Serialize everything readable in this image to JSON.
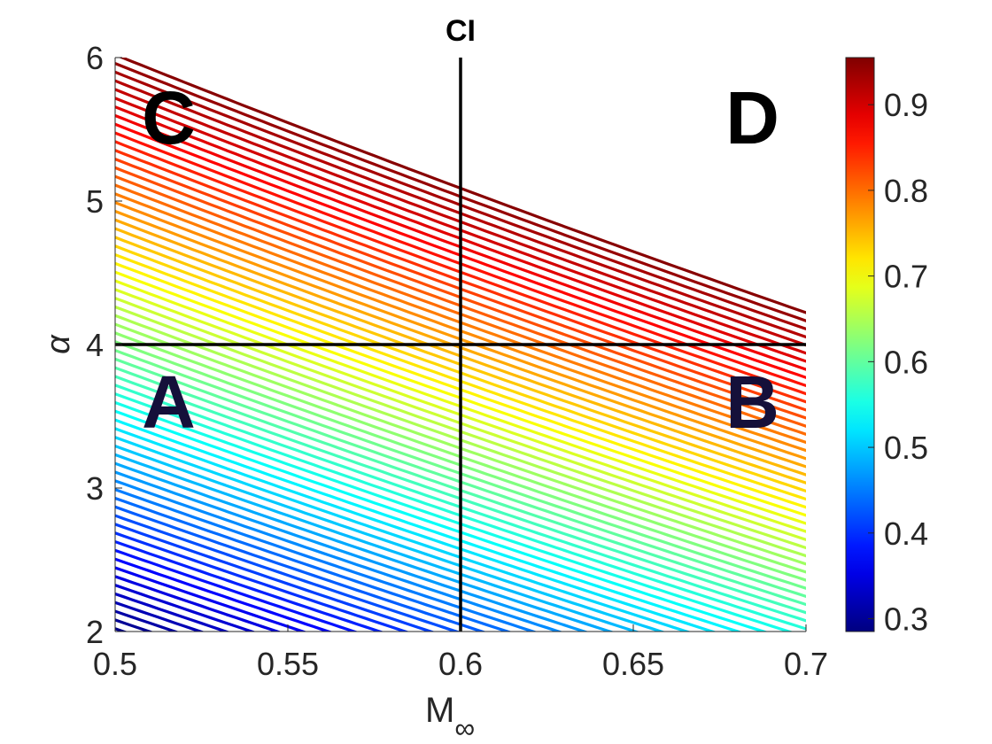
{
  "chart_data": {
    "type": "contour",
    "title": "CI",
    "xlabel": "M",
    "xlabel_subscript": "∞",
    "ylabel": "α",
    "xlim": [
      0.5,
      0.7
    ],
    "ylim": [
      2,
      6
    ],
    "xticks": [
      "0.5",
      "0.55",
      "0.6",
      "0.65",
      "0.7"
    ],
    "yticks": [
      "2",
      "3",
      "4",
      "5",
      "6"
    ],
    "colorbar": {
      "colormap": "jet",
      "range": [
        0.285,
        0.955
      ],
      "ticks": [
        "0.3",
        "0.4",
        "0.5",
        "0.6",
        "0.7",
        "0.8",
        "0.9"
      ]
    },
    "contour_levels": {
      "start": 0.29,
      "end": 0.95,
      "step": 0.01
    },
    "field_model": "CI ≈ 0.29 + 0.165·(α − 2.02) + 1.35·(M∞ − 0.5) + 0.06·(α − 2)·(M∞ − 0.5)",
    "divider_lines": [
      {
        "orientation": "vertical",
        "x": 0.6
      },
      {
        "orientation": "horizontal",
        "y": 4
      }
    ],
    "quadrant_labels": [
      {
        "label": "A",
        "region": "low M, low α"
      },
      {
        "label": "B",
        "region": "high M, low α"
      },
      {
        "label": "C",
        "region": "low M, high α"
      },
      {
        "label": "D",
        "region": "high M, high α"
      }
    ]
  }
}
